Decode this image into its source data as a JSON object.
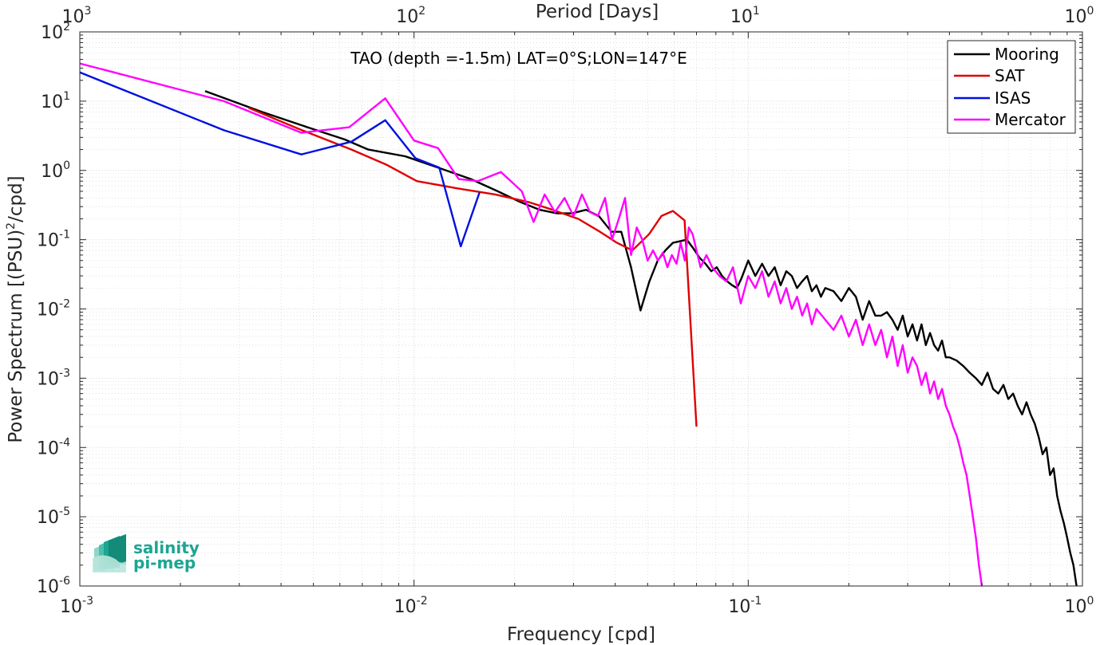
{
  "colors": {
    "Mooring": "#000000",
    "SAT": "#e00000",
    "ISAS": "#0010e0",
    "Mercator": "#ff00ff",
    "grid": "#d9d9d9",
    "logo": "#1aa693"
  },
  "logo": {
    "line1": "salinity",
    "line2": "pi-mep"
  },
  "chart_data": {
    "type": "line",
    "title": "TAO (depth =-1.5m) LAT=0°S;LON=147°E",
    "xlabel": "Frequency [cpd]",
    "ylabel": "Power Spectrum [(PSU)",
    "ylabel_sup": "2",
    "ylabel_tail": "/cpd]",
    "x2label": "Period [Days]",
    "xscale": "log",
    "yscale": "log",
    "xlim": [
      0.001,
      1
    ],
    "ylim": [
      1e-06,
      100
    ],
    "grid": true,
    "minor_grid": true,
    "legend_position": "top-right",
    "x_ticks": [
      {
        "value": 0.001,
        "base": "10",
        "exp": "-3"
      },
      {
        "value": 0.01,
        "base": "10",
        "exp": "-2"
      },
      {
        "value": 0.1,
        "base": "10",
        "exp": "-1"
      },
      {
        "value": 1,
        "base": "10",
        "exp": "0"
      }
    ],
    "x2_ticks": [
      {
        "freq": 0.001,
        "base": "10",
        "exp": "3"
      },
      {
        "freq": 0.01,
        "base": "10",
        "exp": "2"
      },
      {
        "freq": 0.1,
        "base": "10",
        "exp": "1"
      },
      {
        "freq": 1,
        "base": "10",
        "exp": "0"
      }
    ],
    "y_ticks": [
      {
        "value": 1e-06,
        "base": "10",
        "exp": "-6"
      },
      {
        "value": 1e-05,
        "base": "10",
        "exp": "-5"
      },
      {
        "value": 0.0001,
        "base": "10",
        "exp": "-4"
      },
      {
        "value": 0.001,
        "base": "10",
        "exp": "-3"
      },
      {
        "value": 0.01,
        "base": "10",
        "exp": "-2"
      },
      {
        "value": 0.1,
        "base": "10",
        "exp": "-1"
      },
      {
        "value": 1,
        "base": "10",
        "exp": "0"
      },
      {
        "value": 10,
        "base": "10",
        "exp": "1"
      },
      {
        "value": 100,
        "base": "10",
        "exp": "2"
      }
    ],
    "series": [
      {
        "name": "Mooring",
        "x": [
          0.00237,
          0.0035,
          0.0048,
          0.0062,
          0.0073,
          0.0094,
          0.0118,
          0.0148,
          0.0178,
          0.0208,
          0.0238,
          0.0268,
          0.0297,
          0.0327,
          0.0357,
          0.039,
          0.0417,
          0.0446,
          0.0476,
          0.0506,
          0.0536,
          0.0565,
          0.0595,
          0.0625,
          0.0655,
          0.0685,
          0.0715,
          0.0745,
          0.0775,
          0.0805,
          0.0835,
          0.0865,
          0.0895,
          0.0925,
          0.0955,
          0.1,
          0.105,
          0.11,
          0.115,
          0.12,
          0.125,
          0.13,
          0.135,
          0.14,
          0.145,
          0.15,
          0.155,
          0.16,
          0.165,
          0.17,
          0.18,
          0.19,
          0.2,
          0.21,
          0.22,
          0.23,
          0.24,
          0.25,
          0.26,
          0.27,
          0.28,
          0.29,
          0.3,
          0.31,
          0.32,
          0.33,
          0.34,
          0.35,
          0.36,
          0.37,
          0.38,
          0.39,
          0.4,
          0.42,
          0.44,
          0.46,
          0.48,
          0.5,
          0.52,
          0.54,
          0.56,
          0.58,
          0.6,
          0.62,
          0.64,
          0.66,
          0.68,
          0.7,
          0.72,
          0.74,
          0.76,
          0.78,
          0.8,
          0.82,
          0.84,
          0.86,
          0.88,
          0.9,
          0.92,
          0.94,
          0.95,
          0.96
        ],
        "y": [
          14,
          7,
          4.2,
          2.8,
          2.0,
          1.6,
          1.1,
          0.75,
          0.5,
          0.35,
          0.27,
          0.24,
          0.24,
          0.27,
          0.22,
          0.13,
          0.13,
          0.04,
          0.0095,
          0.025,
          0.05,
          0.07,
          0.09,
          0.095,
          0.1,
          0.075,
          0.055,
          0.045,
          0.035,
          0.04,
          0.03,
          0.025,
          0.022,
          0.02,
          0.028,
          0.05,
          0.03,
          0.045,
          0.03,
          0.04,
          0.022,
          0.035,
          0.03,
          0.02,
          0.025,
          0.03,
          0.018,
          0.022,
          0.015,
          0.02,
          0.018,
          0.013,
          0.02,
          0.015,
          0.007,
          0.013,
          0.008,
          0.008,
          0.009,
          0.007,
          0.005,
          0.008,
          0.004,
          0.006,
          0.0035,
          0.006,
          0.003,
          0.0045,
          0.003,
          0.0025,
          0.0035,
          0.002,
          0.002,
          0.0018,
          0.0015,
          0.0012,
          0.001,
          0.0008,
          0.0012,
          0.0007,
          0.0006,
          0.0008,
          0.0005,
          0.0006,
          0.0004,
          0.0003,
          0.00045,
          0.0003,
          0.00022,
          0.00014,
          8e-05,
          0.0001,
          4e-05,
          5e-05,
          2e-05,
          1.2e-05,
          8e-06,
          5e-06,
          3e-06,
          2e-06,
          1.4e-06,
          1e-06
        ]
      },
      {
        "name": "SAT",
        "x": [
          0.0032,
          0.0045,
          0.0065,
          0.0083,
          0.0102,
          0.0135,
          0.0175,
          0.022,
          0.026,
          0.031,
          0.036,
          0.0405,
          0.045,
          0.0505,
          0.055,
          0.0595,
          0.0645,
          0.07
        ],
        "y": [
          8,
          4,
          2,
          1.2,
          0.7,
          0.55,
          0.45,
          0.35,
          0.27,
          0.2,
          0.13,
          0.09,
          0.07,
          0.12,
          0.22,
          0.26,
          0.19,
          0.0002
        ]
      },
      {
        "name": "ISAS",
        "x": [
          0.001,
          0.0027,
          0.0046,
          0.0065,
          0.0082,
          0.0101,
          0.0119,
          0.0138,
          0.0157
        ],
        "y": [
          26,
          3.8,
          1.7,
          2.6,
          5.3,
          1.5,
          1.1,
          0.08,
          0.48
        ]
      },
      {
        "name": "Mercator",
        "x": [
          0.001,
          0.0027,
          0.0046,
          0.0064,
          0.0082,
          0.01,
          0.0118,
          0.0136,
          0.0155,
          0.0182,
          0.021,
          0.0228,
          0.0246,
          0.0264,
          0.0282,
          0.03,
          0.0318,
          0.0336,
          0.0355,
          0.0373,
          0.0391,
          0.041,
          0.0428,
          0.0446,
          0.0464,
          0.0482,
          0.05,
          0.0519,
          0.0537,
          0.0555,
          0.0573,
          0.0591,
          0.061,
          0.0628,
          0.0646,
          0.0664,
          0.0682,
          0.07,
          0.072,
          0.075,
          0.078,
          0.082,
          0.086,
          0.09,
          0.095,
          0.1,
          0.105,
          0.11,
          0.115,
          0.12,
          0.125,
          0.13,
          0.135,
          0.14,
          0.145,
          0.15,
          0.155,
          0.16,
          0.17,
          0.18,
          0.19,
          0.2,
          0.21,
          0.22,
          0.23,
          0.24,
          0.25,
          0.26,
          0.27,
          0.28,
          0.29,
          0.3,
          0.31,
          0.32,
          0.33,
          0.34,
          0.35,
          0.36,
          0.37,
          0.38,
          0.39,
          0.4,
          0.41,
          0.42,
          0.43,
          0.44,
          0.45,
          0.46,
          0.47,
          0.48,
          0.49,
          0.5
        ],
        "y": [
          35,
          10,
          3.5,
          4.2,
          11,
          2.7,
          2.1,
          0.75,
          0.7,
          0.95,
          0.5,
          0.18,
          0.45,
          0.25,
          0.4,
          0.22,
          0.45,
          0.25,
          0.22,
          0.4,
          0.1,
          0.2,
          0.4,
          0.06,
          0.15,
          0.1,
          0.05,
          0.07,
          0.05,
          0.065,
          0.04,
          0.06,
          0.045,
          0.09,
          0.05,
          0.15,
          0.12,
          0.07,
          0.04,
          0.06,
          0.04,
          0.03,
          0.025,
          0.04,
          0.012,
          0.03,
          0.02,
          0.035,
          0.015,
          0.025,
          0.012,
          0.02,
          0.01,
          0.015,
          0.008,
          0.012,
          0.006,
          0.01,
          0.007,
          0.005,
          0.008,
          0.004,
          0.007,
          0.003,
          0.006,
          0.003,
          0.005,
          0.002,
          0.004,
          0.0015,
          0.003,
          0.0012,
          0.002,
          0.0015,
          0.0008,
          0.0012,
          0.0006,
          0.0009,
          0.0005,
          0.0007,
          0.0004,
          0.0003,
          0.0002,
          0.00015,
          0.0001,
          6e-05,
          4e-05,
          2e-05,
          1e-05,
          5e-06,
          2e-06,
          1e-06
        ]
      }
    ]
  }
}
